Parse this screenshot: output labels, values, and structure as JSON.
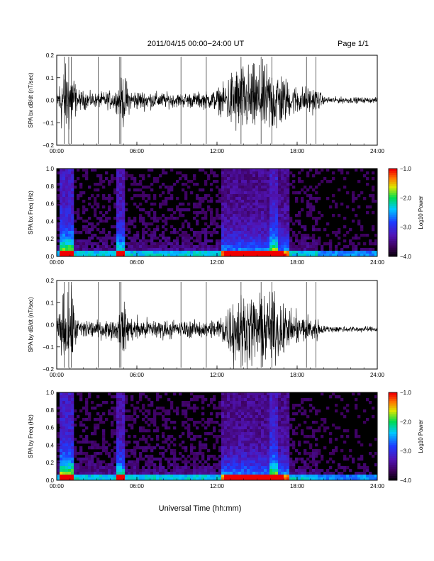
{
  "header": {
    "title": "2011/04/15  00:00−24:00 UT",
    "page": "Page 1/1"
  },
  "x_axis_label": "Universal Time (hh:mm)",
  "chart_data": [
    {
      "type": "line",
      "ylabel": "SPA bx dB/dt (nT/sec)",
      "xlim": [
        0,
        24
      ],
      "ylim": [
        -0.2,
        0.2
      ],
      "x_ticks": [
        "00:00",
        "06:00",
        "12:00",
        "18:00",
        "24:00"
      ],
      "y_ticks": [
        "0.2",
        "0.1",
        "0.0",
        "−0.1",
        "−0.2"
      ],
      "baseline": 0.0,
      "amplitude_envelope": [
        [
          0,
          0.04
        ],
        [
          0.4,
          0.2
        ],
        [
          1.2,
          0.2
        ],
        [
          1.5,
          0.06
        ],
        [
          3,
          0.04
        ],
        [
          4.5,
          0.06
        ],
        [
          5.0,
          0.16
        ],
        [
          5.5,
          0.06
        ],
        [
          9,
          0.04
        ],
        [
          11.5,
          0.05
        ],
        [
          12.5,
          0.09
        ],
        [
          13.2,
          0.2
        ],
        [
          16.5,
          0.2
        ],
        [
          17.5,
          0.09
        ],
        [
          19.5,
          0.07
        ],
        [
          20,
          0.02
        ],
        [
          24,
          0.015
        ]
      ]
    },
    {
      "type": "heatmap",
      "ylabel": "SPA bx Freq (Hz)",
      "xlim": [
        0,
        24
      ],
      "ylim": [
        0.0,
        1.0
      ],
      "x_ticks": [
        "00:00",
        "06:00",
        "12:00",
        "18:00",
        "24:00"
      ],
      "y_ticks": [
        "1.0",
        "0.8",
        "0.6",
        "0.4",
        "0.2",
        "0.0"
      ],
      "colorbar": {
        "label": "Log10 Power",
        "ticks": [
          "−1.0",
          "−2.0",
          "−3.0",
          "−4.0"
        ],
        "range": [
          -4.0,
          -1.0
        ]
      }
    },
    {
      "type": "line",
      "ylabel": "SPA by dB/dt (nT/sec)",
      "xlim": [
        0,
        24
      ],
      "ylim": [
        -0.2,
        0.2
      ],
      "x_ticks": [
        "00:00",
        "06:00",
        "12:00",
        "18:00",
        "24:00"
      ],
      "y_ticks": [
        "0.2",
        "0.1",
        "0.0",
        "−0.1",
        "−0.2"
      ],
      "baseline": -0.02,
      "amplitude_envelope": [
        [
          0,
          0.05
        ],
        [
          0.5,
          0.2
        ],
        [
          1.2,
          0.2
        ],
        [
          1.5,
          0.07
        ],
        [
          3,
          0.05
        ],
        [
          4.5,
          0.06
        ],
        [
          5.0,
          0.17
        ],
        [
          5.5,
          0.07
        ],
        [
          9,
          0.05
        ],
        [
          11.5,
          0.05
        ],
        [
          12.5,
          0.1
        ],
        [
          13.2,
          0.2
        ],
        [
          16.5,
          0.2
        ],
        [
          17.5,
          0.1
        ],
        [
          19.5,
          0.07
        ],
        [
          20,
          0.02
        ],
        [
          24,
          0.015
        ]
      ]
    },
    {
      "type": "heatmap",
      "ylabel": "SPA by Freq (Hz)",
      "xlim": [
        0,
        24
      ],
      "ylim": [
        0.0,
        1.0
      ],
      "x_ticks": [
        "00:00",
        "06:00",
        "12:00",
        "18:00",
        "24:00"
      ],
      "y_ticks": [
        "1.0",
        "0.8",
        "0.6",
        "0.4",
        "0.2",
        "0.0"
      ],
      "colorbar": {
        "label": "Log10 Power",
        "ticks": [
          "−1.0",
          "−2.0",
          "−3.0",
          "−4.0"
        ],
        "range": [
          -4.0,
          -1.0
        ]
      }
    }
  ]
}
